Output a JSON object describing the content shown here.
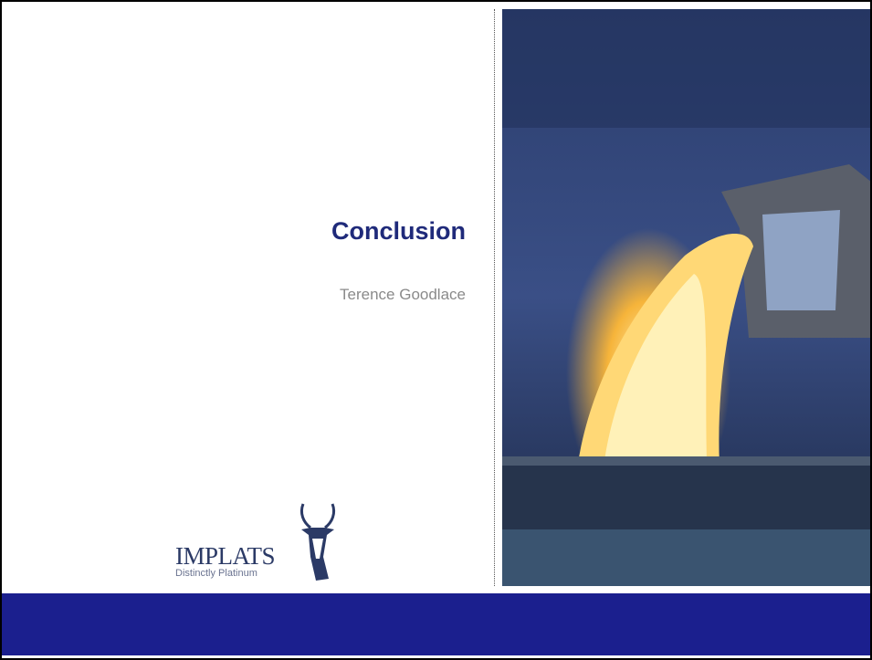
{
  "slide": {
    "title": "Conclusion",
    "presenter": "Terence Goodlace",
    "logo": {
      "name": "IMPLATS",
      "tagline": "Distinctly Platinum"
    }
  }
}
